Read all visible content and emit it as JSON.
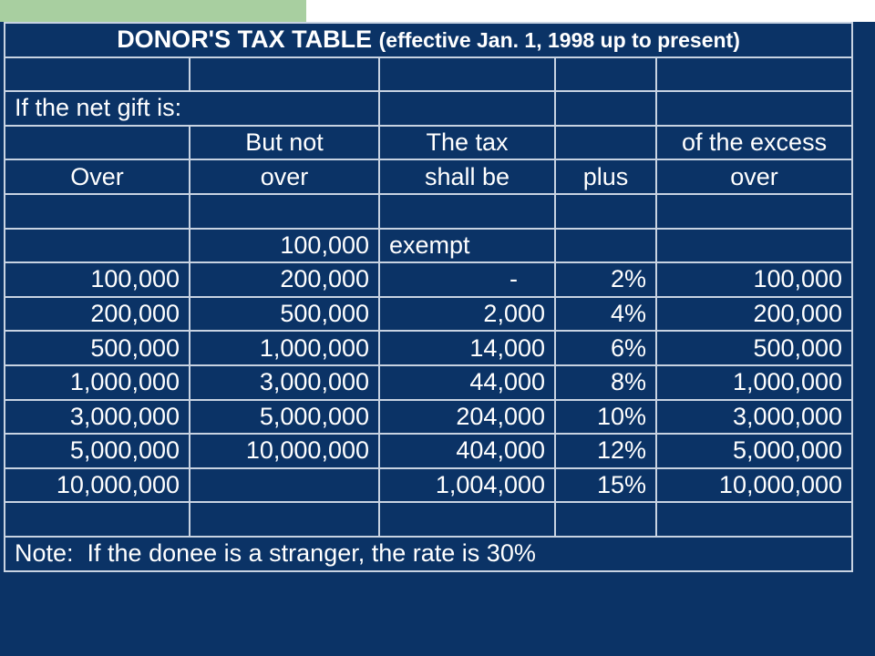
{
  "title": {
    "main": "DONOR'S TAX TABLE",
    "sub": "(effective Jan. 1, 1998 up to present)"
  },
  "intro": "If the net gift is:",
  "headers": {
    "row1": [
      "",
      "But not",
      "The tax",
      "",
      "of the excess"
    ],
    "row2": [
      "Over",
      "over",
      "shall be",
      "plus",
      "over"
    ]
  },
  "rows": [
    [
      "",
      "100,000",
      "exempt",
      "",
      ""
    ],
    [
      "100,000",
      "200,000",
      "-",
      "2%",
      "100,000"
    ],
    [
      "200,000",
      "500,000",
      "2,000",
      "4%",
      "200,000"
    ],
    [
      "500,000",
      "1,000,000",
      "14,000",
      "6%",
      "500,000"
    ],
    [
      "1,000,000",
      "3,000,000",
      "44,000",
      "8%",
      "1,000,000"
    ],
    [
      "3,000,000",
      "5,000,000",
      "204,000",
      "10%",
      "3,000,000"
    ],
    [
      "5,000,000",
      "10,000,000",
      "404,000",
      "12%",
      "5,000,000"
    ],
    [
      "10,000,000",
      "",
      "1,004,000",
      "15%",
      "10,000,000"
    ]
  ],
  "note": "Note:  If the donee is a stranger, the rate is 30%",
  "colors": {
    "background": "#0b3366",
    "grid": "#c8d3e2",
    "text": "#ffffff",
    "top_left_bar": "#a8cfa0"
  }
}
